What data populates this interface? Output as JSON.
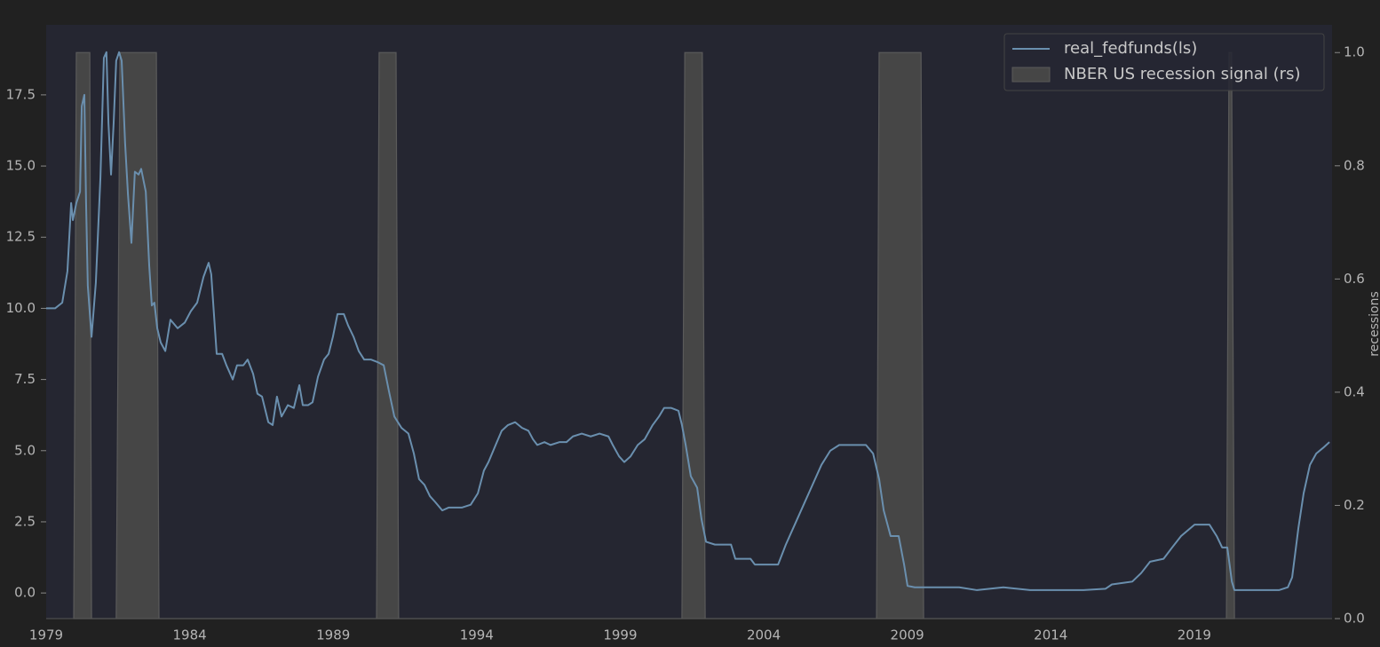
{
  "chart_data": {
    "type": "line",
    "y2_label": "recessions",
    "legend": "upper right",
    "xlim": [
      1979,
      2023.8
    ],
    "xticks": [
      1979,
      1984,
      1989,
      1994,
      1999,
      2004,
      2009,
      2014,
      2019
    ],
    "ylim": [
      -0.9,
      19.96
    ],
    "yticks": [
      {
        "value": 0,
        "label": "0.0"
      },
      2.5,
      {
        "value": 5,
        "label": "5.0"
      },
      7.5,
      {
        "value": 10,
        "label": "10.0"
      },
      12.5,
      {
        "value": 15,
        "label": "15.0"
      },
      17.5
    ],
    "y2lim": [
      0,
      1.049
    ],
    "y2ticks": [
      {
        "value": 0,
        "label": "0.0"
      },
      0.2,
      0.4,
      0.6,
      0.8,
      {
        "value": 1,
        "label": "1.0"
      }
    ],
    "series": [
      {
        "name": "real_fedfunds(ls)",
        "type": "line",
        "color": "#6a8fae",
        "x": [
          1979.0,
          1979.31,
          1979.56,
          1979.74,
          1979.87,
          1979.93,
          1980.05,
          1980.18,
          1980.24,
          1980.33,
          1980.39,
          1980.45,
          1980.58,
          1980.73,
          1980.89,
          1981.01,
          1981.1,
          1981.17,
          1981.26,
          1981.35,
          1981.44,
          1981.54,
          1981.63,
          1981.75,
          1981.85,
          1981.97,
          1982.09,
          1982.22,
          1982.31,
          1982.47,
          1982.59,
          1982.68,
          1982.77,
          1982.87,
          1982.99,
          1983.15,
          1983.33,
          1983.58,
          1983.83,
          1984.04,
          1984.26,
          1984.48,
          1984.66,
          1984.75,
          1984.94,
          1985.13,
          1985.28,
          1985.5,
          1985.65,
          1985.87,
          1986.02,
          1986.21,
          1986.36,
          1986.52,
          1986.74,
          1986.89,
          1987.04,
          1987.2,
          1987.42,
          1987.63,
          1987.82,
          1987.94,
          1988.13,
          1988.28,
          1988.47,
          1988.68,
          1988.84,
          1988.99,
          1989.15,
          1989.37,
          1989.52,
          1989.71,
          1989.89,
          1990.08,
          1990.32,
          1990.57,
          1990.76,
          1990.94,
          1991.13,
          1991.38,
          1991.62,
          1991.81,
          1991.99,
          1992.18,
          1992.37,
          1992.55,
          1992.8,
          1993.02,
          1993.23,
          1993.48,
          1993.79,
          1994.04,
          1994.25,
          1994.41,
          1994.66,
          1994.87,
          1995.09,
          1995.34,
          1995.58,
          1995.8,
          1995.96,
          1996.11,
          1996.36,
          1996.57,
          1996.88,
          1997.13,
          1997.35,
          1997.66,
          1997.97,
          1998.28,
          1998.59,
          1998.74,
          1998.96,
          1999.14,
          1999.36,
          1999.61,
          1999.85,
          2000.13,
          2000.35,
          2000.53,
          2000.78,
          2001.03,
          2001.15,
          2001.28,
          2001.46,
          2001.68,
          2001.83,
          2001.99,
          2002.3,
          2002.61,
          2002.86,
          2003.01,
          2003.32,
          2003.54,
          2003.69,
          2004.0,
          2004.5,
          2004.77,
          2005.08,
          2005.39,
          2005.7,
          2006.01,
          2006.32,
          2006.63,
          2007.09,
          2007.56,
          2007.81,
          2008.02,
          2008.18,
          2008.42,
          2008.7,
          2008.89,
          2009.01,
          2009.26,
          2009.72,
          2010.34,
          2010.81,
          2011.43,
          2012.35,
          2013.28,
          2014.21,
          2015.14,
          2015.91,
          2016.13,
          2016.84,
          2017.15,
          2017.46,
          2017.93,
          2018.23,
          2018.54,
          2019.01,
          2019.53,
          2019.78,
          2019.97,
          2020.15,
          2020.31,
          2020.4,
          2020.71,
          2021.33,
          2021.95,
          2022.26,
          2022.41,
          2022.63,
          2022.81,
          2023.03,
          2023.25,
          2023.49,
          2023.71
        ],
        "values": [
          10.0,
          10.0,
          10.2,
          11.3,
          13.7,
          13.1,
          13.7,
          14.1,
          17.1,
          17.5,
          13.7,
          10.8,
          9.0,
          10.9,
          14.6,
          18.8,
          19.0,
          16.5,
          14.7,
          16.5,
          18.7,
          19.0,
          18.7,
          15.8,
          14.0,
          12.3,
          14.8,
          14.7,
          14.9,
          14.1,
          11.5,
          10.1,
          10.2,
          9.3,
          8.8,
          8.5,
          9.6,
          9.3,
          9.5,
          9.9,
          10.2,
          11.1,
          11.6,
          11.2,
          8.4,
          8.4,
          8.0,
          7.5,
          8.0,
          8.0,
          8.2,
          7.7,
          7.0,
          6.9,
          6.0,
          5.9,
          6.9,
          6.2,
          6.6,
          6.5,
          7.3,
          6.6,
          6.6,
          6.7,
          7.6,
          8.2,
          8.4,
          9.0,
          9.8,
          9.8,
          9.4,
          9.0,
          8.5,
          8.2,
          8.2,
          8.1,
          8.0,
          7.1,
          6.2,
          5.8,
          5.6,
          4.9,
          4.0,
          3.8,
          3.4,
          3.2,
          2.9,
          3.0,
          3.0,
          3.0,
          3.1,
          3.5,
          4.3,
          4.6,
          5.2,
          5.7,
          5.9,
          6.0,
          5.8,
          5.7,
          5.4,
          5.2,
          5.3,
          5.2,
          5.3,
          5.3,
          5.5,
          5.6,
          5.5,
          5.6,
          5.5,
          5.2,
          4.8,
          4.6,
          4.8,
          5.2,
          5.4,
          5.9,
          6.2,
          6.5,
          6.5,
          6.4,
          5.9,
          5.2,
          4.1,
          3.7,
          2.6,
          1.8,
          1.7,
          1.7,
          1.7,
          1.2,
          1.2,
          1.2,
          1.0,
          1.0,
          1.0,
          1.7,
          2.4,
          3.1,
          3.8,
          4.5,
          5.0,
          5.2,
          5.2,
          5.2,
          4.9,
          4.0,
          2.9,
          2.0,
          2.0,
          1.0,
          0.25,
          0.2,
          0.2,
          0.2,
          0.2,
          0.1,
          0.2,
          0.1,
          0.1,
          0.1,
          0.15,
          0.3,
          0.4,
          0.7,
          1.1,
          1.2,
          1.6,
          2.0,
          2.4,
          2.4,
          2.0,
          1.6,
          1.6,
          0.4,
          0.1,
          0.1,
          0.1,
          0.1,
          0.2,
          0.55,
          2.3,
          3.5,
          4.5,
          4.9,
          5.1,
          5.3
        ]
      },
      {
        "name": "NBER US recession signal (rs)",
        "type": "area",
        "axis": "y2",
        "color": "#464646",
        "x": [
          1979.96,
          1980.05,
          1980.52,
          1980.58,
          1981.44,
          1981.57,
          1982.84,
          1982.93,
          1990.51,
          1990.6,
          1991.19,
          1991.28,
          2001.15,
          2001.25,
          2001.86,
          2001.96,
          2007.93,
          2008.02,
          2009.48,
          2009.57,
          2020.12,
          2020.21,
          2020.3,
          2020.4
        ],
        "values": [
          0,
          1,
          1,
          0,
          0,
          1,
          1,
          0,
          0,
          1,
          1,
          0,
          0,
          1,
          1,
          0,
          0,
          1,
          1,
          0,
          0,
          1,
          1,
          0
        ]
      }
    ]
  }
}
